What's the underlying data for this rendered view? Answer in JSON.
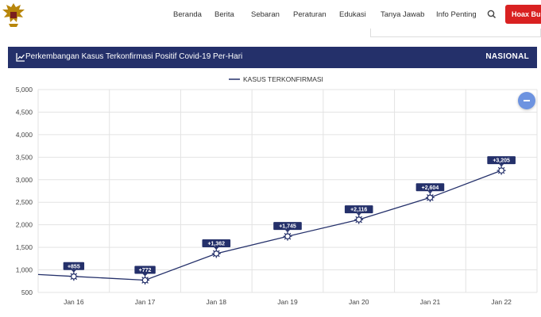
{
  "nav": {
    "items": [
      "Beranda",
      "Berita",
      "Sebaran",
      "Peraturan",
      "Edukasi",
      "Tanya Jawab",
      "Info Penting"
    ],
    "hoax_button": "Hoax Buster"
  },
  "header": {
    "title": "Perkembangan Kasus Terkonfirmasi Positif Covid-19 Per-Hari",
    "scope": "NASIONAL"
  },
  "colors": {
    "navy": "#24306a",
    "accent_red": "#d92121",
    "fab_blue": "#6d93e0"
  },
  "icons": [
    "garuda-logo",
    "search-icon",
    "line-chart-icon",
    "virus-icon",
    "minus-icon"
  ],
  "chart_data": {
    "type": "line",
    "legend": "KASUS TERKONFIRMASI",
    "legend_position": "top-center",
    "x": [
      "Jan 16",
      "Jan 17",
      "Jan 18",
      "Jan 19",
      "Jan 20",
      "Jan 21",
      "Jan 22"
    ],
    "series": [
      {
        "name": "KASUS TERKONFIRMASI",
        "values": [
          855,
          772,
          1362,
          1745,
          2116,
          2604,
          3205
        ]
      }
    ],
    "data_labels": [
      "+855",
      "+772",
      "+1,362",
      "+1,745",
      "+2,116",
      "+2,604",
      "+3,205"
    ],
    "y_ticks": [
      "5,000",
      "4,500",
      "4,000",
      "3,500",
      "3,000",
      "2,500",
      "2,000",
      "1,500",
      "1,000",
      "500"
    ],
    "ylim": [
      500,
      5000
    ],
    "grid": true
  }
}
